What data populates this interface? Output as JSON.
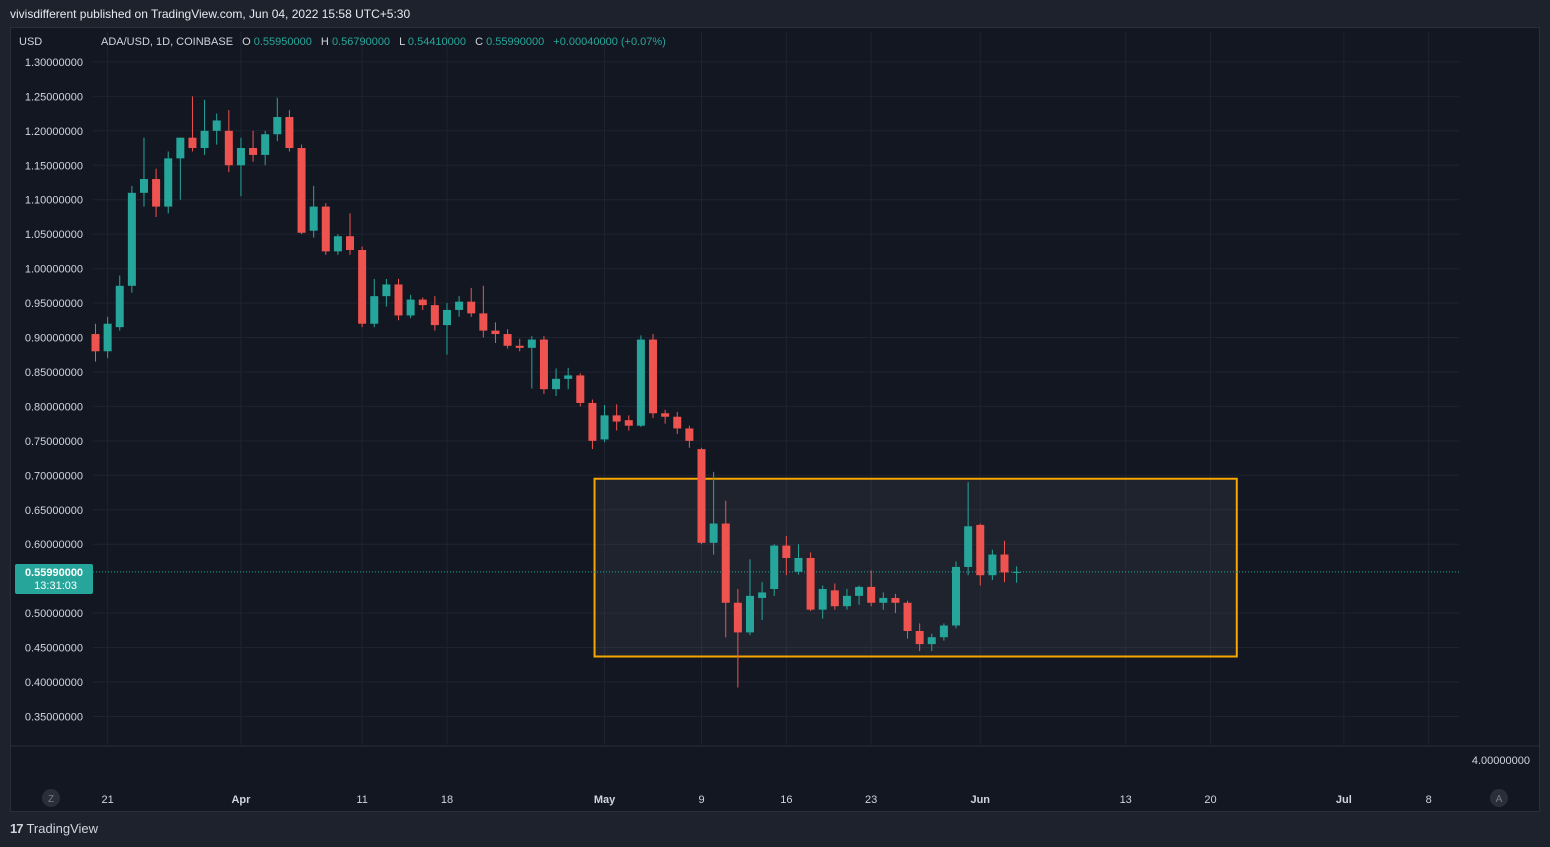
{
  "header": {
    "published_line": "vivisdifferent published on TradingView.com, Jun 04, 2022 15:58 UTC+5:30"
  },
  "footer": {
    "brand": "TradingView"
  },
  "legend": {
    "currency": "USD",
    "symbol": "ADA/USD, 1D, COINBASE",
    "o_label": "O",
    "o_value": "0.55950000",
    "h_label": "H",
    "h_value": "0.56790000",
    "l_label": "L",
    "l_value": "0.54410000",
    "c_label": "C",
    "c_value": "0.55990000",
    "change": "+0.00040000 (+0.07%)"
  },
  "price_tag": {
    "price": "0.55990000",
    "countdown": "13:31:03"
  },
  "bottom_right_value": "4.00000000",
  "buttons": {
    "z_label": "Z",
    "a_label": "A"
  },
  "colors": {
    "up": "#26a69a",
    "down": "#ef5350",
    "background": "#131722",
    "grid": "#1f2330",
    "range_box": "#f7a600",
    "text": "#d1d4dc"
  },
  "chart_data": {
    "type": "candlestick",
    "title": "ADA/USD, 1D, COINBASE",
    "ylim": [
      0.3,
      1.33
    ],
    "y_ticks": [
      {
        "label": "1.30000000",
        "value": 1.3
      },
      {
        "label": "1.25000000",
        "value": 1.25
      },
      {
        "label": "1.20000000",
        "value": 1.2
      },
      {
        "label": "1.15000000",
        "value": 1.15
      },
      {
        "label": "1.10000000",
        "value": 1.1
      },
      {
        "label": "1.05000000",
        "value": 1.05
      },
      {
        "label": "1.00000000",
        "value": 1.0
      },
      {
        "label": "0.95000000",
        "value": 0.95
      },
      {
        "label": "0.90000000",
        "value": 0.9
      },
      {
        "label": "0.85000000",
        "value": 0.85
      },
      {
        "label": "0.80000000",
        "value": 0.8
      },
      {
        "label": "0.75000000",
        "value": 0.75
      },
      {
        "label": "0.70000000",
        "value": 0.7
      },
      {
        "label": "0.65000000",
        "value": 0.65
      },
      {
        "label": "0.60000000",
        "value": 0.6
      },
      {
        "label": "0.50000000",
        "value": 0.5
      },
      {
        "label": "0.45000000",
        "value": 0.45
      },
      {
        "label": "0.40000000",
        "value": 0.4
      },
      {
        "label": "0.35000000",
        "value": 0.35
      }
    ],
    "x_ticks": [
      {
        "label": "21",
        "date": "2022-03-21",
        "bold": false
      },
      {
        "label": "Apr",
        "date": "2022-04-01",
        "bold": true
      },
      {
        "label": "11",
        "date": "2022-04-11",
        "bold": false
      },
      {
        "label": "18",
        "date": "2022-04-18",
        "bold": false
      },
      {
        "label": "May",
        "date": "2022-05-01",
        "bold": true
      },
      {
        "label": "9",
        "date": "2022-05-09",
        "bold": false
      },
      {
        "label": "16",
        "date": "2022-05-16",
        "bold": false
      },
      {
        "label": "23",
        "date": "2022-05-23",
        "bold": false
      },
      {
        "label": "Jun",
        "date": "2022-06-01",
        "bold": true
      },
      {
        "label": "13",
        "date": "2022-06-13",
        "bold": false
      },
      {
        "label": "20",
        "date": "2022-06-20",
        "bold": false
      },
      {
        "label": "Jul",
        "date": "2022-07-01",
        "bold": true
      },
      {
        "label": "8",
        "date": "2022-07-08",
        "bold": false
      }
    ],
    "range_box": {
      "date_from": "2022-05-01",
      "date_to": "2022-06-22",
      "price_low": 0.437,
      "price_high": 0.695
    },
    "last_price": 0.5599,
    "candles": [
      {
        "date": "2022-03-20",
        "o": 0.905,
        "h": 0.92,
        "l": 0.865,
        "c": 0.88
      },
      {
        "date": "2022-03-21",
        "o": 0.88,
        "h": 0.93,
        "l": 0.87,
        "c": 0.92
      },
      {
        "date": "2022-03-22",
        "o": 0.915,
        "h": 0.99,
        "l": 0.91,
        "c": 0.975
      },
      {
        "date": "2022-03-23",
        "o": 0.975,
        "h": 1.12,
        "l": 0.965,
        "c": 1.11
      },
      {
        "date": "2022-03-24",
        "o": 1.11,
        "h": 1.19,
        "l": 1.09,
        "c": 1.13
      },
      {
        "date": "2022-03-25",
        "o": 1.13,
        "h": 1.145,
        "l": 1.075,
        "c": 1.09
      },
      {
        "date": "2022-03-26",
        "o": 1.09,
        "h": 1.17,
        "l": 1.08,
        "c": 1.16
      },
      {
        "date": "2022-03-27",
        "o": 1.16,
        "h": 1.19,
        "l": 1.1,
        "c": 1.19
      },
      {
        "date": "2022-03-28",
        "o": 1.19,
        "h": 1.25,
        "l": 1.17,
        "c": 1.175
      },
      {
        "date": "2022-03-29",
        "o": 1.175,
        "h": 1.245,
        "l": 1.165,
        "c": 1.2
      },
      {
        "date": "2022-03-30",
        "o": 1.2,
        "h": 1.225,
        "l": 1.18,
        "c": 1.215
      },
      {
        "date": "2022-03-31",
        "o": 1.2,
        "h": 1.23,
        "l": 1.14,
        "c": 1.15
      },
      {
        "date": "2022-04-01",
        "o": 1.15,
        "h": 1.19,
        "l": 1.105,
        "c": 1.175
      },
      {
        "date": "2022-04-02",
        "o": 1.175,
        "h": 1.2,
        "l": 1.155,
        "c": 1.165
      },
      {
        "date": "2022-04-03",
        "o": 1.165,
        "h": 1.2,
        "l": 1.15,
        "c": 1.195
      },
      {
        "date": "2022-04-04",
        "o": 1.195,
        "h": 1.248,
        "l": 1.185,
        "c": 1.22
      },
      {
        "date": "2022-04-05",
        "o": 1.22,
        "h": 1.23,
        "l": 1.17,
        "c": 1.175
      },
      {
        "date": "2022-04-06",
        "o": 1.175,
        "h": 1.18,
        "l": 1.05,
        "c": 1.052
      },
      {
        "date": "2022-04-07",
        "o": 1.055,
        "h": 1.12,
        "l": 1.045,
        "c": 1.09
      },
      {
        "date": "2022-04-08",
        "o": 1.09,
        "h": 1.095,
        "l": 1.02,
        "c": 1.025
      },
      {
        "date": "2022-04-09",
        "o": 1.025,
        "h": 1.05,
        "l": 1.02,
        "c": 1.047
      },
      {
        "date": "2022-04-10",
        "o": 1.047,
        "h": 1.08,
        "l": 1.02,
        "c": 1.027
      },
      {
        "date": "2022-04-11",
        "o": 1.027,
        "h": 1.032,
        "l": 0.915,
        "c": 0.92
      },
      {
        "date": "2022-04-12",
        "o": 0.92,
        "h": 0.985,
        "l": 0.915,
        "c": 0.96
      },
      {
        "date": "2022-04-13",
        "o": 0.96,
        "h": 0.985,
        "l": 0.945,
        "c": 0.977
      },
      {
        "date": "2022-04-14",
        "o": 0.977,
        "h": 0.985,
        "l": 0.925,
        "c": 0.932
      },
      {
        "date": "2022-04-15",
        "o": 0.932,
        "h": 0.962,
        "l": 0.928,
        "c": 0.955
      },
      {
        "date": "2022-04-16",
        "o": 0.955,
        "h": 0.958,
        "l": 0.94,
        "c": 0.947
      },
      {
        "date": "2022-04-17",
        "o": 0.947,
        "h": 0.96,
        "l": 0.91,
        "c": 0.918
      },
      {
        "date": "2022-04-18",
        "o": 0.918,
        "h": 0.95,
        "l": 0.875,
        "c": 0.94
      },
      {
        "date": "2022-04-19",
        "o": 0.94,
        "h": 0.96,
        "l": 0.93,
        "c": 0.952
      },
      {
        "date": "2022-04-20",
        "o": 0.952,
        "h": 0.972,
        "l": 0.93,
        "c": 0.935
      },
      {
        "date": "2022-04-21",
        "o": 0.935,
        "h": 0.975,
        "l": 0.9,
        "c": 0.91
      },
      {
        "date": "2022-04-22",
        "o": 0.91,
        "h": 0.922,
        "l": 0.892,
        "c": 0.905
      },
      {
        "date": "2022-04-23",
        "o": 0.905,
        "h": 0.912,
        "l": 0.884,
        "c": 0.888
      },
      {
        "date": "2022-04-24",
        "o": 0.888,
        "h": 0.898,
        "l": 0.88,
        "c": 0.885
      },
      {
        "date": "2022-04-25",
        "o": 0.885,
        "h": 0.902,
        "l": 0.826,
        "c": 0.897
      },
      {
        "date": "2022-04-26",
        "o": 0.897,
        "h": 0.902,
        "l": 0.818,
        "c": 0.825
      },
      {
        "date": "2022-04-27",
        "o": 0.825,
        "h": 0.855,
        "l": 0.815,
        "c": 0.84
      },
      {
        "date": "2022-04-28",
        "o": 0.84,
        "h": 0.856,
        "l": 0.825,
        "c": 0.845
      },
      {
        "date": "2022-04-29",
        "o": 0.845,
        "h": 0.848,
        "l": 0.8,
        "c": 0.805
      },
      {
        "date": "2022-04-30",
        "o": 0.805,
        "h": 0.81,
        "l": 0.738,
        "c": 0.75
      },
      {
        "date": "2022-05-01",
        "o": 0.752,
        "h": 0.802,
        "l": 0.748,
        "c": 0.787
      },
      {
        "date": "2022-05-02",
        "o": 0.787,
        "h": 0.803,
        "l": 0.765,
        "c": 0.778
      },
      {
        "date": "2022-05-03",
        "o": 0.78,
        "h": 0.787,
        "l": 0.765,
        "c": 0.772
      },
      {
        "date": "2022-05-04",
        "o": 0.772,
        "h": 0.903,
        "l": 0.77,
        "c": 0.897
      },
      {
        "date": "2022-05-05",
        "o": 0.897,
        "h": 0.905,
        "l": 0.783,
        "c": 0.79
      },
      {
        "date": "2022-05-06",
        "o": 0.79,
        "h": 0.795,
        "l": 0.775,
        "c": 0.785
      },
      {
        "date": "2022-05-07",
        "o": 0.785,
        "h": 0.792,
        "l": 0.76,
        "c": 0.768
      },
      {
        "date": "2022-05-08",
        "o": 0.768,
        "h": 0.772,
        "l": 0.74,
        "c": 0.75
      },
      {
        "date": "2022-05-09",
        "o": 0.738,
        "h": 0.74,
        "l": 0.6,
        "c": 0.602
      },
      {
        "date": "2022-05-10",
        "o": 0.602,
        "h": 0.705,
        "l": 0.585,
        "c": 0.63
      },
      {
        "date": "2022-05-11",
        "o": 0.63,
        "h": 0.663,
        "l": 0.465,
        "c": 0.515
      },
      {
        "date": "2022-05-12",
        "o": 0.515,
        "h": 0.535,
        "l": 0.392,
        "c": 0.472
      },
      {
        "date": "2022-05-13",
        "o": 0.472,
        "h": 0.578,
        "l": 0.468,
        "c": 0.525
      },
      {
        "date": "2022-05-14",
        "o": 0.522,
        "h": 0.545,
        "l": 0.49,
        "c": 0.53
      },
      {
        "date": "2022-05-15",
        "o": 0.535,
        "h": 0.6,
        "l": 0.525,
        "c": 0.598
      },
      {
        "date": "2022-05-16",
        "o": 0.598,
        "h": 0.612,
        "l": 0.555,
        "c": 0.58
      },
      {
        "date": "2022-05-17",
        "o": 0.56,
        "h": 0.6,
        "l": 0.556,
        "c": 0.58
      },
      {
        "date": "2022-05-18",
        "o": 0.58,
        "h": 0.588,
        "l": 0.503,
        "c": 0.505
      },
      {
        "date": "2022-05-19",
        "o": 0.505,
        "h": 0.54,
        "l": 0.492,
        "c": 0.535
      },
      {
        "date": "2022-05-20",
        "o": 0.533,
        "h": 0.543,
        "l": 0.505,
        "c": 0.51
      },
      {
        "date": "2022-05-21",
        "o": 0.51,
        "h": 0.535,
        "l": 0.505,
        "c": 0.525
      },
      {
        "date": "2022-05-22",
        "o": 0.525,
        "h": 0.54,
        "l": 0.512,
        "c": 0.538
      },
      {
        "date": "2022-05-23",
        "o": 0.538,
        "h": 0.562,
        "l": 0.51,
        "c": 0.515
      },
      {
        "date": "2022-05-24",
        "o": 0.515,
        "h": 0.53,
        "l": 0.505,
        "c": 0.522
      },
      {
        "date": "2022-05-25",
        "o": 0.522,
        "h": 0.528,
        "l": 0.5,
        "c": 0.515
      },
      {
        "date": "2022-05-26",
        "o": 0.515,
        "h": 0.518,
        "l": 0.463,
        "c": 0.474
      },
      {
        "date": "2022-05-27",
        "o": 0.474,
        "h": 0.485,
        "l": 0.445,
        "c": 0.455
      },
      {
        "date": "2022-05-28",
        "o": 0.455,
        "h": 0.47,
        "l": 0.445,
        "c": 0.465
      },
      {
        "date": "2022-05-29",
        "o": 0.465,
        "h": 0.485,
        "l": 0.46,
        "c": 0.482
      },
      {
        "date": "2022-05-30",
        "o": 0.482,
        "h": 0.575,
        "l": 0.478,
        "c": 0.567
      },
      {
        "date": "2022-05-31",
        "o": 0.567,
        "h": 0.69,
        "l": 0.555,
        "c": 0.626
      },
      {
        "date": "2022-06-01",
        "o": 0.628,
        "h": 0.63,
        "l": 0.54,
        "c": 0.555
      },
      {
        "date": "2022-06-02",
        "o": 0.555,
        "h": 0.592,
        "l": 0.548,
        "c": 0.585
      },
      {
        "date": "2022-06-03",
        "o": 0.585,
        "h": 0.605,
        "l": 0.545,
        "c": 0.559
      },
      {
        "date": "2022-06-04",
        "o": 0.5595,
        "h": 0.5679,
        "l": 0.5441,
        "c": 0.5599
      }
    ]
  }
}
